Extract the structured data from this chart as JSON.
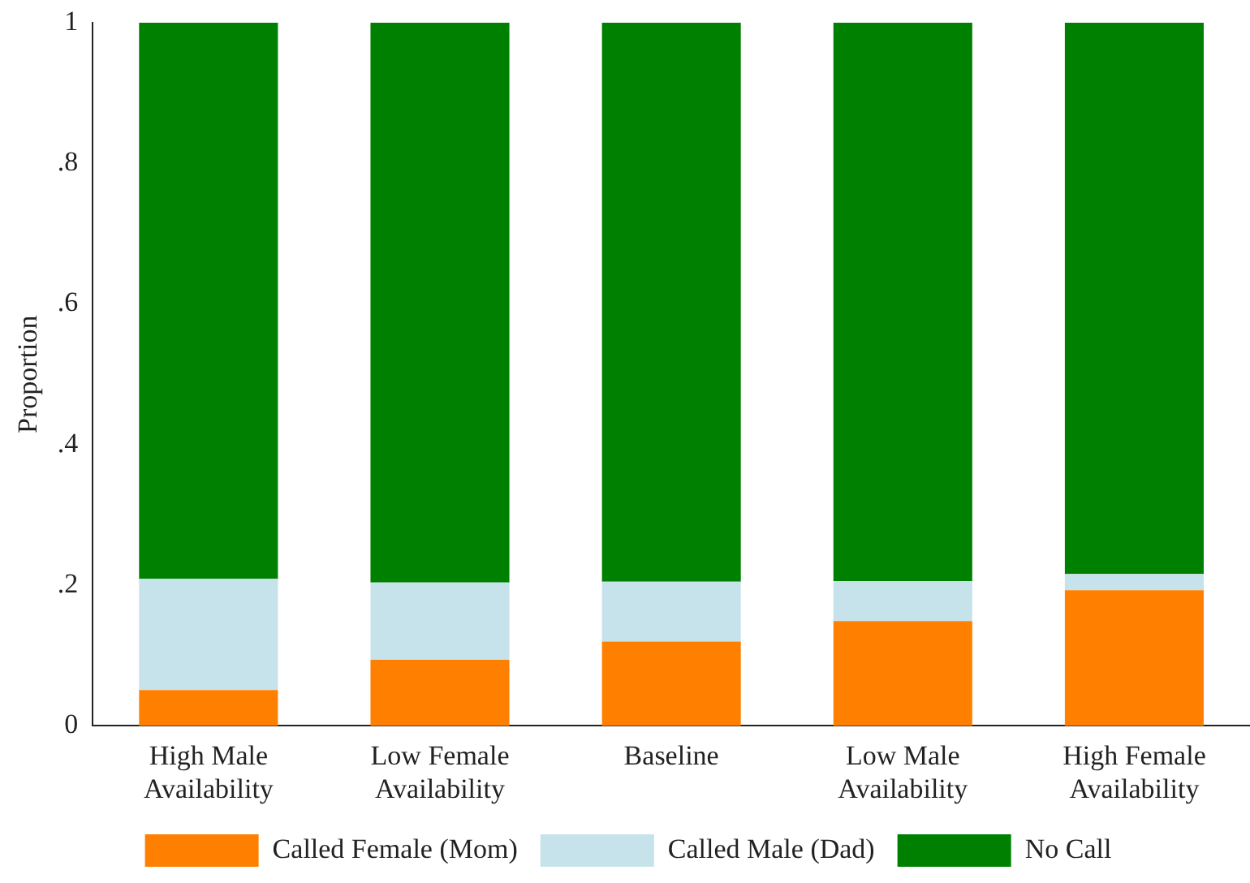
{
  "chart_data": {
    "type": "bar",
    "stacked": true,
    "ylabel": "Proportion",
    "categories": [
      "High Male Availability",
      "Low Female Availability",
      "Baseline",
      "Low Male Availability",
      "High Female Availability"
    ],
    "series": [
      {
        "name": "Called Female (Mom)",
        "color": "#ff8000",
        "values": [
          0.051,
          0.094,
          0.12,
          0.149,
          0.193
        ]
      },
      {
        "name": "Called Male (Dad)",
        "color": "#c6e3ec",
        "values": [
          0.158,
          0.11,
          0.085,
          0.057,
          0.023
        ]
      },
      {
        "name": "No Call",
        "color": "#008000",
        "values": [
          0.791,
          0.796,
          0.795,
          0.794,
          0.784
        ]
      }
    ],
    "ylim": [
      0,
      1
    ],
    "yticks": [
      0,
      {
        "value": 0.2,
        "label": ".2"
      },
      {
        "value": 0.4,
        "label": ".4"
      },
      {
        "value": 0.6,
        "label": ".6"
      },
      {
        "value": 0.8,
        "label": ".8"
      },
      1
    ],
    "grid": false,
    "legend": "bottom"
  }
}
